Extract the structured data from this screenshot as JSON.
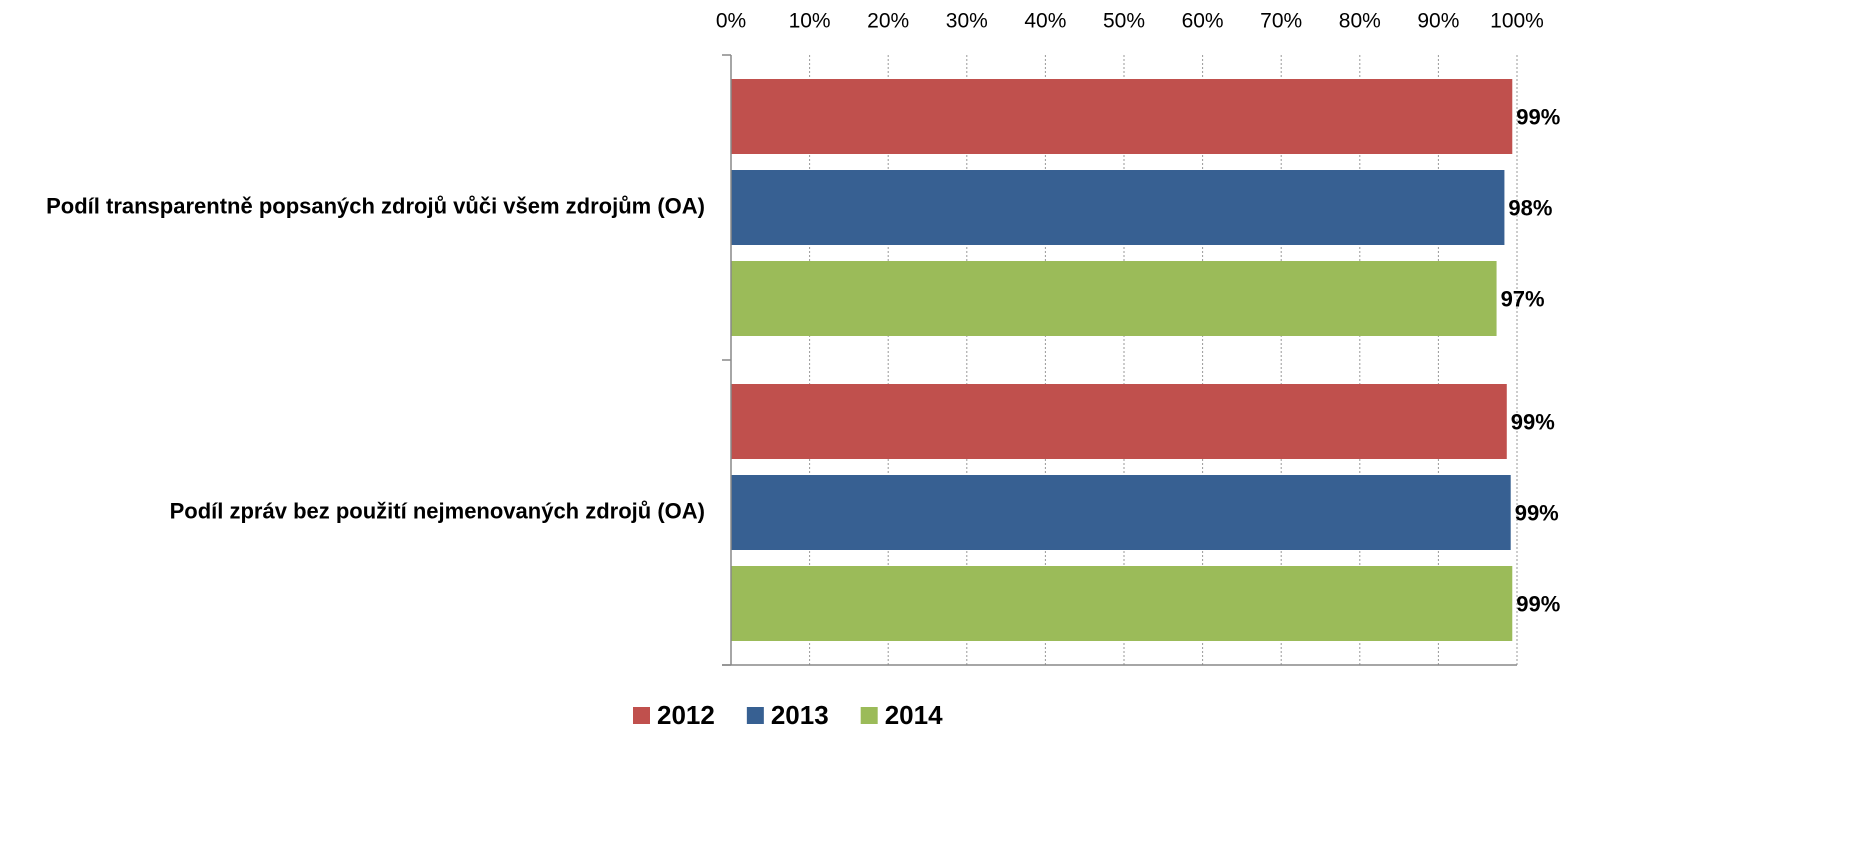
{
  "chart_data": {
    "type": "barh",
    "categories": [
      "Podíl transparentně popsaných zdrojů vůči všem zdrojům (OA)",
      "Podíl zpráv bez použití nejmenovaných zdrojů (OA)"
    ],
    "series": [
      {
        "name": "2012",
        "color": "#c0504d",
        "values": [
          99.4,
          98.7
        ],
        "value_labels": [
          "99%",
          "99%"
        ]
      },
      {
        "name": "2013",
        "color": "#376092",
        "values": [
          98.4,
          99.2
        ],
        "value_labels": [
          "98%",
          "99%"
        ]
      },
      {
        "name": "2014",
        "color": "#9bbb59",
        "values": [
          97.4,
          99.4
        ],
        "value_labels": [
          "97%",
          "99%"
        ]
      }
    ],
    "xlim": [
      0,
      100
    ],
    "xticks": [
      {
        "value": 0,
        "label": "0%"
      },
      {
        "value": 10,
        "label": "10%"
      },
      {
        "value": 20,
        "label": "20%"
      },
      {
        "value": 30,
        "label": "30%"
      },
      {
        "value": 40,
        "label": "40%"
      },
      {
        "value": 50,
        "label": "50%"
      },
      {
        "value": 60,
        "label": "60%"
      },
      {
        "value": 70,
        "label": "70%"
      },
      {
        "value": 80,
        "label": "80%"
      },
      {
        "value": 90,
        "label": "90%"
      },
      {
        "value": 100,
        "label": "100%"
      }
    ],
    "grid": true,
    "legend": "bottom"
  }
}
